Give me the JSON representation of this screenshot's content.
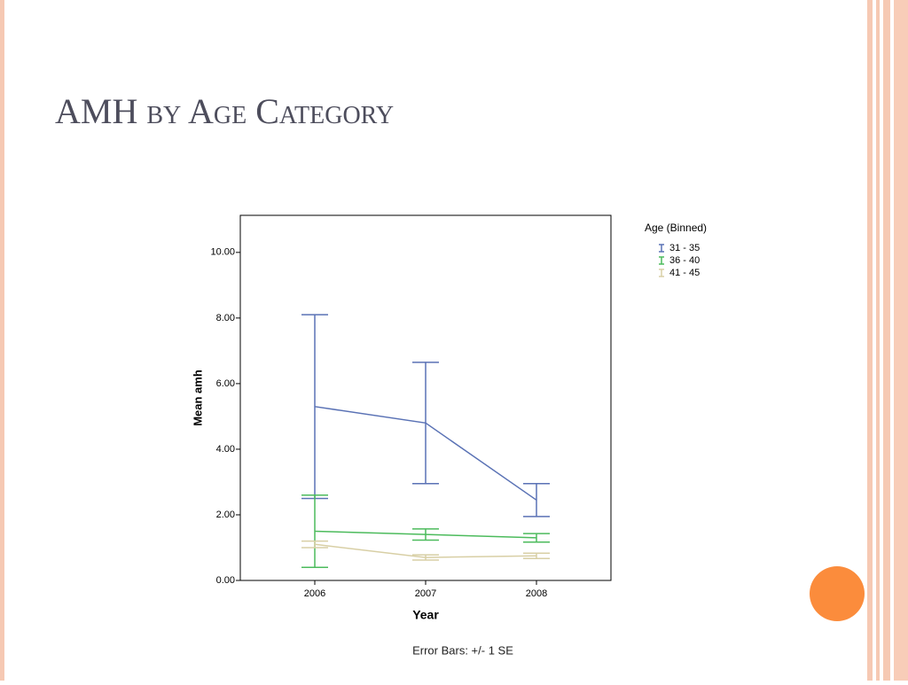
{
  "chart_data": {
    "type": "line",
    "title": "AMH by Age Category",
    "x_label": "Year",
    "y_label": "Mean amh",
    "legend_title": "Age (Binned)",
    "note": "Error Bars: +/- 1 SE",
    "categories": [
      "2006",
      "2007",
      "2008"
    ],
    "series": [
      {
        "name": "31 - 35",
        "color": "#5a72b5",
        "values": [
          5.3,
          4.8,
          2.45
        ],
        "errors": [
          2.8,
          1.85,
          0.5
        ]
      },
      {
        "name": "36 - 40",
        "color": "#4cbb5c",
        "values": [
          1.5,
          1.4,
          1.3
        ],
        "errors": [
          1.1,
          0.17,
          0.13
        ]
      },
      {
        "name": "41 - 45",
        "color": "#d8cfa5",
        "values": [
          1.1,
          0.7,
          0.75
        ],
        "errors": [
          0.1,
          0.08,
          0.08
        ]
      }
    ],
    "ylim": [
      0,
      11.13
    ],
    "yticks": [
      {
        "value": 0,
        "label": "0.00"
      },
      {
        "value": 2,
        "label": "2.00"
      },
      {
        "value": 4,
        "label": "4.00"
      },
      {
        "value": 6,
        "label": "6.00"
      },
      {
        "value": 8,
        "label": "8.00"
      },
      {
        "value": 10,
        "label": "10.00"
      }
    ],
    "grid": false,
    "legend": "right"
  }
}
